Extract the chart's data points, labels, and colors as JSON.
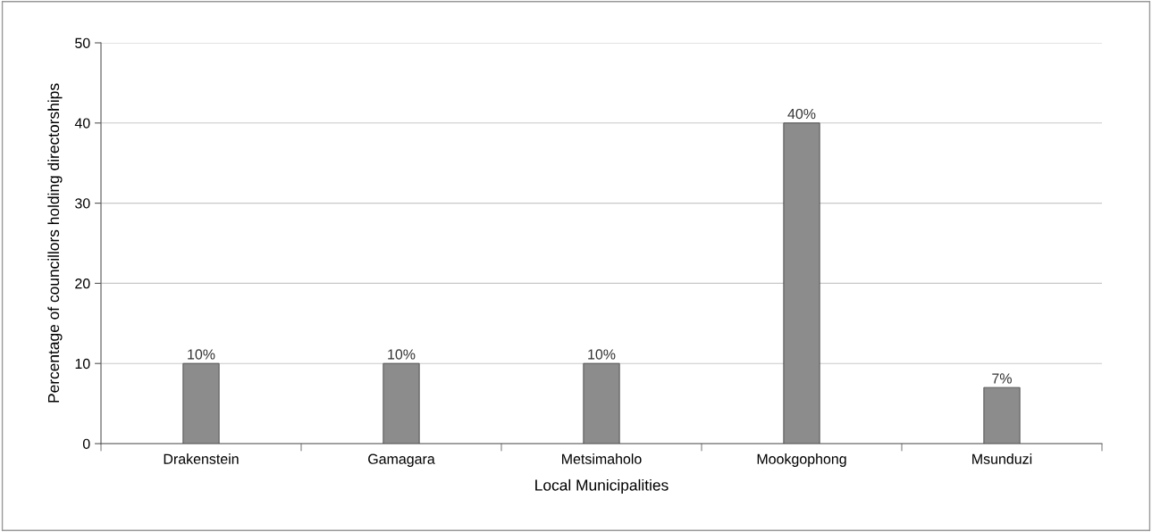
{
  "chart_data": {
    "type": "bar",
    "xlabel": "Local Municipalities",
    "ylabel": "Percentage of councillors holding directorships",
    "categories": [
      "Drakenstein",
      "Gamagara",
      "Metsimaholo",
      "Mookgophong",
      "Msunduzi"
    ],
    "values": [
      10,
      10,
      10,
      40,
      7
    ],
    "value_labels": [
      "10%",
      "10%",
      "10%",
      "40%",
      "7%"
    ],
    "color": "#8c8c8c",
    "ylim": [
      0,
      50
    ],
    "yticks": [
      0,
      10,
      20,
      30,
      40,
      50
    ],
    "grid": "y"
  }
}
